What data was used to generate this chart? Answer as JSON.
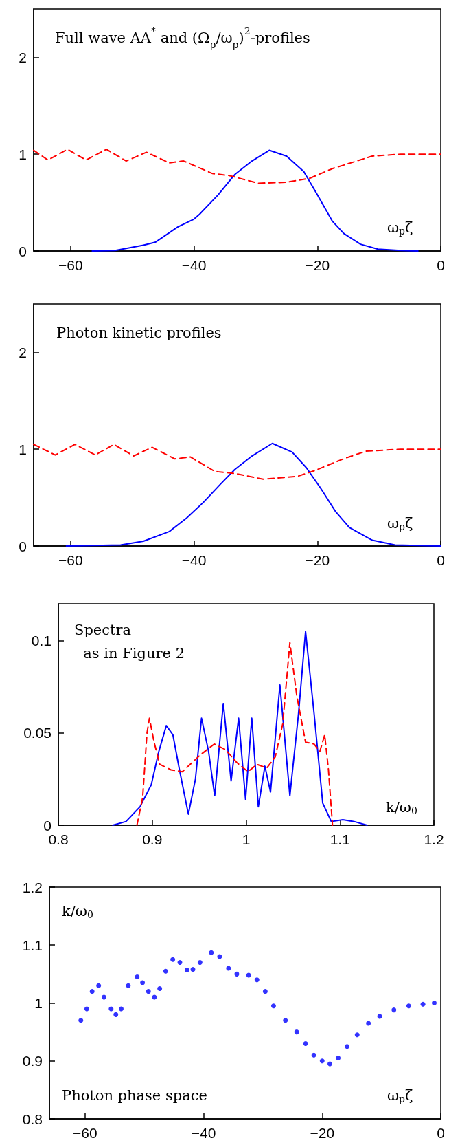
{
  "chart_data": [
    {
      "type": "line",
      "title": "Full wave AA$^{*}$ and (Ω$_{p}$/ω$_{p}$)$^{2}$-profiles",
      "xlabel": "ω$_{p}$ζ",
      "xlim": [
        -66,
        0
      ],
      "xticks": [
        -60,
        -40,
        -20,
        0
      ],
      "ylim": [
        0,
        2.5
      ],
      "yticks": [
        0,
        1,
        2
      ],
      "series": [
        {
          "color": "#0000ff",
          "line_style": "solid",
          "x": [
            -56.5,
            -52.8,
            -48.2,
            -46.3,
            -42.6,
            -40,
            -39.1,
            -36.1,
            -33.4,
            -30.6,
            -27.8,
            -25,
            -22.2,
            -20,
            -17.6,
            -15.7,
            -13,
            -10.2,
            -6.5,
            -3.7
          ],
          "values": [
            0,
            0.005,
            0.06,
            0.09,
            0.25,
            0.33,
            0.38,
            0.58,
            0.79,
            0.93,
            1.04,
            0.98,
            0.82,
            0.58,
            0.31,
            0.18,
            0.07,
            0.02,
            0.005,
            0
          ]
        },
        {
          "color": "#ff0000",
          "line_style": "dashed",
          "x": [
            -66,
            -63.7,
            -60.5,
            -57.5,
            -54.2,
            -51,
            -47.7,
            -44,
            -41.7,
            -37,
            -34.3,
            -29.6,
            -25,
            -21.3,
            -17.6,
            -11.1,
            -6.5,
            0
          ],
          "values": [
            1.04,
            0.94,
            1.05,
            0.94,
            1.05,
            0.93,
            1.02,
            0.91,
            0.93,
            0.8,
            0.78,
            0.7,
            0.71,
            0.75,
            0.85,
            0.98,
            1,
            1
          ]
        }
      ]
    },
    {
      "type": "line",
      "title": "Photon kinetic profiles",
      "xlabel": "ω$_{p}$ζ",
      "xlim": [
        -66,
        0
      ],
      "xticks": [
        -60,
        -40,
        -20,
        0
      ],
      "ylim": [
        0,
        2.5
      ],
      "yticks": [
        0,
        1,
        2
      ],
      "series": [
        {
          "color": "#0000ff",
          "line_style": "solid",
          "x": [
            -60.7,
            -51.9,
            -48.2,
            -44,
            -41.2,
            -38.5,
            -35.7,
            -33.4,
            -30.6,
            -27.3,
            -24.1,
            -21.8,
            -19.5,
            -17.1,
            -14.8,
            -11.1,
            -7.4,
            0
          ],
          "values": [
            0,
            0.01,
            0.05,
            0.15,
            0.29,
            0.45,
            0.64,
            0.79,
            0.93,
            1.06,
            0.97,
            0.81,
            0.6,
            0.36,
            0.19,
            0.06,
            0.01,
            0
          ]
        },
        {
          "color": "#ff0000",
          "line_style": "dashed",
          "x": [
            -66,
            -62.5,
            -59.3,
            -56,
            -53,
            -49.8,
            -46.8,
            -43.1,
            -40.6,
            -36.6,
            -33.4,
            -28.8,
            -23.2,
            -20.4,
            -15.8,
            -12.1,
            -6.5,
            0
          ],
          "values": [
            1.05,
            0.94,
            1.05,
            0.94,
            1.05,
            0.93,
            1.02,
            0.9,
            0.92,
            0.77,
            0.75,
            0.69,
            0.72,
            0.78,
            0.9,
            0.98,
            1,
            1
          ]
        }
      ]
    },
    {
      "type": "line",
      "title": "Spectra\n  as in Figure 2",
      "xlabel": "k/ω$_{0}$",
      "xlim": [
        0.8,
        1.2
      ],
      "xticks": [
        0.8,
        0.9,
        1,
        1.1,
        1.2
      ],
      "ylim": [
        0,
        0.12
      ],
      "yticks": [
        0,
        0.05,
        0.1
      ],
      "series": [
        {
          "color": "#0000ff",
          "line_style": "solid",
          "x": [
            0.858,
            0.872,
            0.887,
            0.899,
            0.907,
            0.915,
            0.922,
            0.929,
            0.9385,
            0.946,
            0.9525,
            0.96,
            0.9665,
            0.9757,
            0.984,
            0.992,
            0.9994,
            1.006,
            1.013,
            1.02,
            1.026,
            1.036,
            1.0466,
            1.0557,
            1.0633,
            1.0725,
            1.0816,
            1.0907,
            1.103,
            1.115,
            1.1288
          ],
          "values": [
            0,
            0.002,
            0.01,
            0.022,
            0.04,
            0.054,
            0.049,
            0.03,
            0.006,
            0.025,
            0.058,
            0.04,
            0.016,
            0.066,
            0.024,
            0.058,
            0.014,
            0.058,
            0.01,
            0.032,
            0.018,
            0.076,
            0.016,
            0.06,
            0.105,
            0.06,
            0.012,
            0.002,
            0.003,
            0.002,
            0
          ]
        },
        {
          "color": "#ff0000",
          "line_style": "dashed",
          "x": [
            0.8837,
            0.8898,
            0.8944,
            0.897,
            0.902,
            0.908,
            0.92,
            0.932,
            0.951,
            0.966,
            0.978,
            0.99,
            1.002,
            1.0116,
            1.022,
            1.031,
            1.039,
            1.0466,
            1.054,
            1.0633,
            1.0724,
            1.0785,
            1.0837,
            1.0877,
            1.092
          ],
          "values": [
            0,
            0.015,
            0.05,
            0.058,
            0.045,
            0.033,
            0.03,
            0.029,
            0.038,
            0.044,
            0.041,
            0.034,
            0.029,
            0.033,
            0.031,
            0.037,
            0.055,
            0.099,
            0.07,
            0.045,
            0.044,
            0.04,
            0.049,
            0.03,
            0
          ]
        }
      ]
    },
    {
      "type": "scatter",
      "title": "Photon phase space",
      "xlabel": "ω$_{p}$ζ",
      "ylabel": "k/ω$_{0}$",
      "marker": "circle",
      "xlim": [
        -66,
        0
      ],
      "xticks": [
        -60,
        -40,
        -20,
        0
      ],
      "ylim": [
        0.8,
        1.2
      ],
      "yticks": [
        0.8,
        0.9,
        1,
        1.1,
        1.2
      ],
      "series": [
        {
          "color": "#0000ff",
          "x": [
            -60.7,
            -59.7,
            -58.8,
            -57.7,
            -56.8,
            -55.6,
            -54.8,
            -53.9,
            -52.7,
            -51.2,
            -50.3,
            -49.3,
            -48.3,
            -47.4,
            -46.4,
            -45.2,
            -44,
            -42.8,
            -41.8,
            -40.6,
            -38.7,
            -37.3,
            -35.8,
            -34.4,
            -32.4,
            -31,
            -29.6,
            -28.2,
            -26.2,
            -24.3,
            -22.8,
            -21.4,
            -20,
            -18.7,
            -17.3,
            -15.8,
            -14.1,
            -12.2,
            -10.3,
            -7.9,
            -5.4,
            -3,
            -1.1
          ],
          "values": [
            0.97,
            0.99,
            1.02,
            1.03,
            1.01,
            0.99,
            0.98,
            0.99,
            1.03,
            1.045,
            1.035,
            1.02,
            1.01,
            1.025,
            1.055,
            1.075,
            1.07,
            1.057,
            1.058,
            1.07,
            1.087,
            1.08,
            1.06,
            1.05,
            1.048,
            1.04,
            1.02,
            0.995,
            0.97,
            0.95,
            0.93,
            0.91,
            0.9,
            0.895,
            0.905,
            0.925,
            0.945,
            0.965,
            0.977,
            0.988,
            0.995,
            0.998,
            1
          ]
        }
      ]
    }
  ]
}
